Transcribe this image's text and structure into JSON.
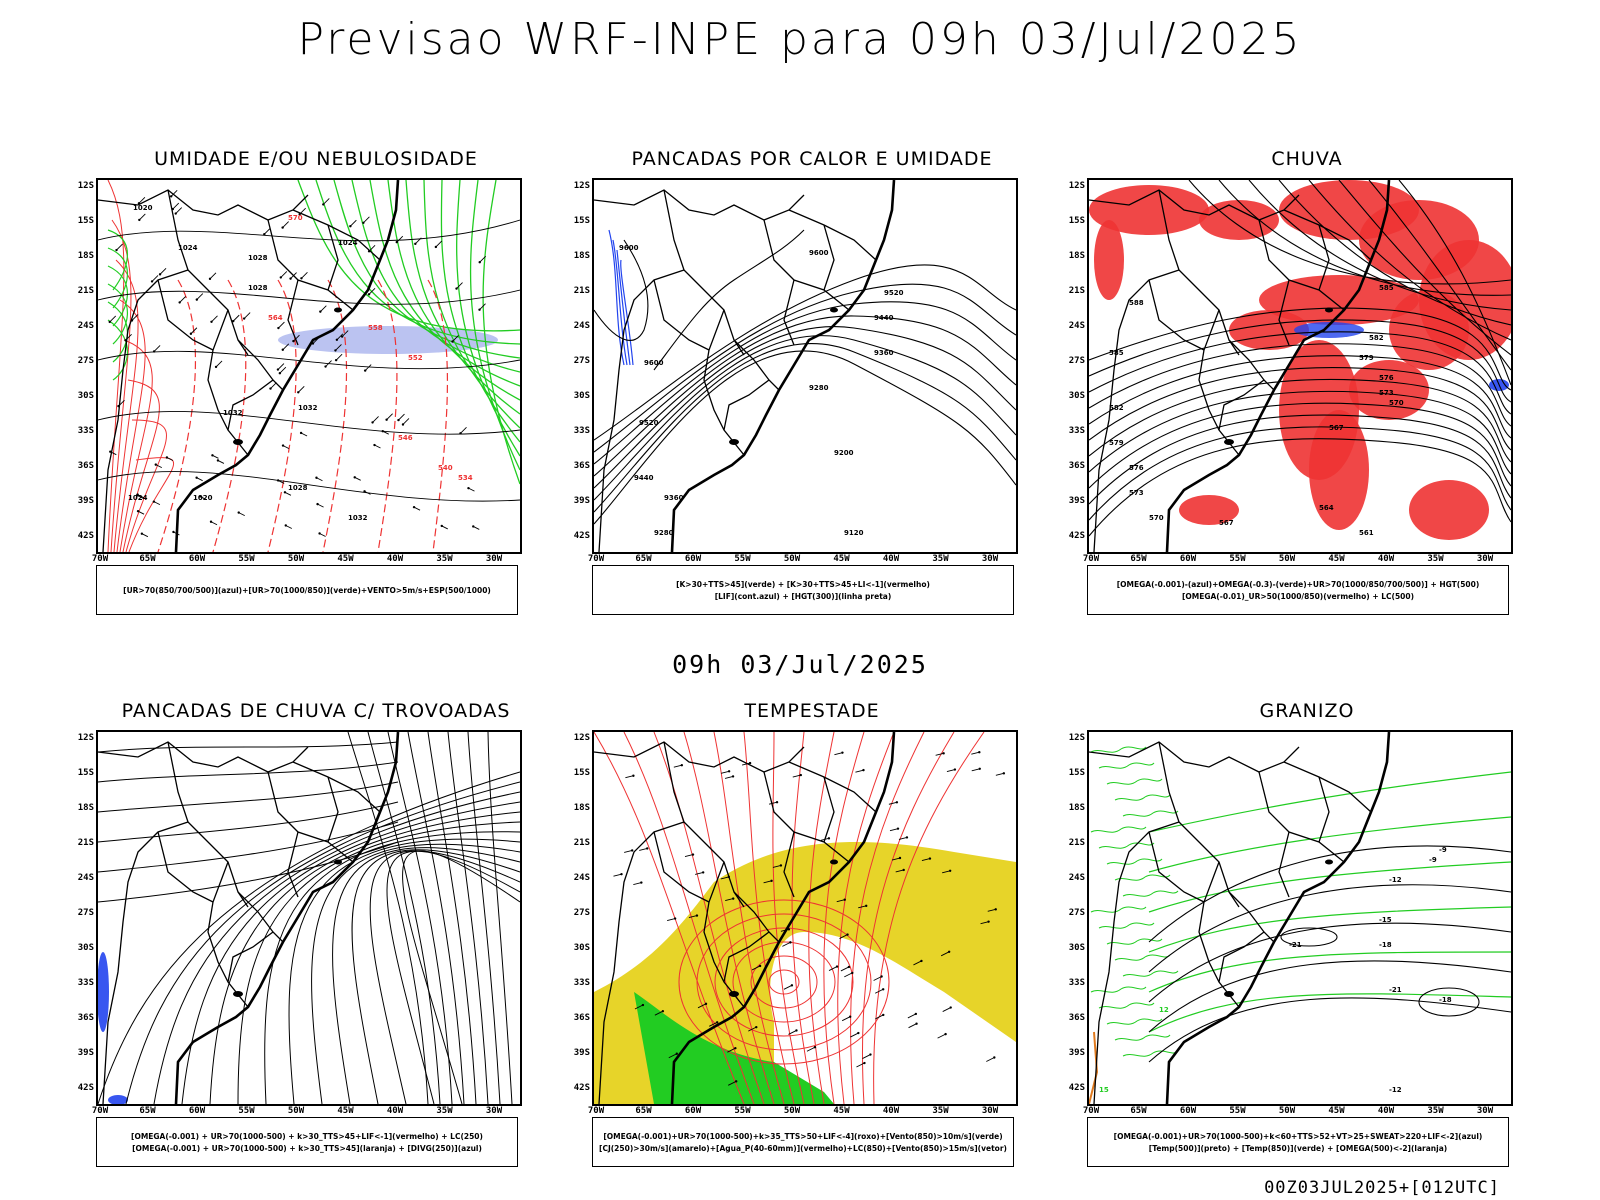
{
  "header": {
    "title": "Previsao WRF-INPE  para 09h 03/Jul/2025"
  },
  "middle_time": "09h 03/Jul/2025",
  "footer_code": "00Z03JUL2025+[012UTC]",
  "axes": {
    "lat_ticks": [
      "12S",
      "15S",
      "18S",
      "21S",
      "24S",
      "27S",
      "30S",
      "33S",
      "36S",
      "39S",
      "42S"
    ],
    "lon_ticks": [
      "70W",
      "65W",
      "60W",
      "55W",
      "50W",
      "45W",
      "40W",
      "35W",
      "30W"
    ]
  },
  "colors": {
    "green": "#22cc22",
    "red": "#ee3333",
    "blue": "#2244ee",
    "yellow": "#e6d21e",
    "lightblue": "#aab4ee",
    "black": "#000000"
  },
  "panels": [
    {
      "id": "umidade",
      "title": "UMIDADE E/OU NEBULOSIDADE",
      "legend": [
        "[UR>70(850/700/500)](azul)+[UR>70(1000/850)](verde)+VENTO>5m/s+ESP(500/1000)"
      ],
      "contour_labels": [
        "1020",
        "1024",
        "1028",
        "1028",
        "1024",
        "1032",
        "1032",
        "1028",
        "1032",
        "1024",
        "1020",
        "570",
        "564",
        "558",
        "552",
        "546",
        "540",
        "534"
      ]
    },
    {
      "id": "pancadas-calor",
      "title": "PANCADAS POR CALOR E UMIDADE",
      "legend": [
        "[K>30+TTS>45](verde) + [K>30+TTS>45+LI<-1](vermelho)",
        "[LIF](cont.azul) + [HGT(300)](linha preta)"
      ],
      "contour_labels": [
        "9600",
        "9600",
        "9520",
        "9440",
        "9360",
        "9280",
        "9200",
        "9120",
        "9600",
        "9520",
        "9440",
        "9360",
        "9280"
      ]
    },
    {
      "id": "chuva",
      "title": "CHUVA",
      "legend": [
        "[OMEGA(-0.001)-(azul)+OMEGA(-0.3)-(verde)+UR>70(1000/850/700/500)] + HGT(500)",
        "[OMEGA(-0.01)_UR>50(1000/850)(vermelho) + LC(500)"
      ],
      "contour_labels": [
        "588",
        "585",
        "582",
        "579",
        "576",
        "573",
        "570",
        "567",
        "564",
        "561",
        "585",
        "582",
        "579",
        "576",
        "573",
        "570",
        "567"
      ]
    },
    {
      "id": "trovoadas",
      "title": "PANCADAS DE CHUVA C/ TROVOADAS",
      "legend": [
        "[OMEGA(-0.001) + UR>70(1000-500) + k>30_TTS>45+LIF<-1](vermelho) + LC(250)",
        "[OMEGA(-0.001) + UR>70(1000-500) + k>30_TTS>45](laranja) + [DIVG(250)](azul)"
      ],
      "contour_labels": []
    },
    {
      "id": "tempestade",
      "title": "TEMPESTADE",
      "legend": [
        "[OMEGA(-0.001)+UR>70(1000-500)+k>35_TTS>50+LIF<-4](roxo)+[Vento(850)>10m/s](verde)",
        "[CJ(250)>30m/s](amarelo)+[Agua_P(40-60mm)](vermelho)+LC(850)+[Vento(850)>15m/s](vetor)"
      ],
      "contour_labels": []
    },
    {
      "id": "granizo",
      "title": "GRANIZO",
      "legend": [
        "[OMEGA(-0.001)+UR>70(1000-500)+k<60+TTS>52+VT>25+SWEAT>220+LIF<-2](azul)",
        "[Temp(500)](preto) + [Temp(850)](verde) + [OMEGA(500)<-2](laranja)"
      ],
      "contour_labels": [
        "-21",
        "-18",
        "-15",
        "-12",
        "-9",
        "-21",
        "-18",
        "-12",
        "-9",
        "12",
        "15"
      ]
    }
  ]
}
